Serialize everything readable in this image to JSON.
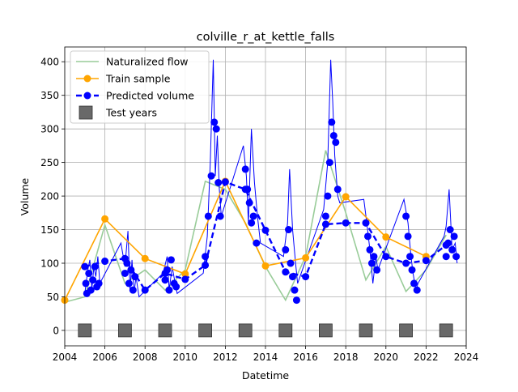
{
  "chart_data": {
    "type": "line",
    "title": "colville_r_at_kettle_falls",
    "xlabel": "Datetime",
    "ylabel": "Volume",
    "xlim": [
      2004,
      2024
    ],
    "ylim": [
      -23,
      422
    ],
    "x_ticks": [
      2004,
      2006,
      2008,
      2010,
      2012,
      2014,
      2016,
      2018,
      2020,
      2022,
      2024
    ],
    "y_ticks": [
      0,
      50,
      100,
      150,
      200,
      250,
      300,
      350,
      400
    ],
    "grid": true,
    "legend_position": "top-left",
    "series": [
      {
        "name": "Naturalized flow",
        "kind": "line",
        "color": "#99cc99",
        "points": [
          [
            2004,
            42
          ],
          [
            2005,
            50
          ],
          [
            2006,
            157
          ],
          [
            2007,
            70
          ],
          [
            2008,
            90
          ],
          [
            2009,
            60
          ],
          [
            2010,
            90
          ],
          [
            2011,
            222
          ],
          [
            2012,
            210
          ],
          [
            2013,
            160
          ],
          [
            2014,
            95
          ],
          [
            2015,
            45
          ],
          [
            2016,
            110
          ],
          [
            2017,
            268
          ],
          [
            2018,
            175
          ],
          [
            2019,
            75
          ],
          [
            2020,
            125
          ],
          [
            2021,
            58
          ],
          [
            2022,
            90
          ],
          [
            2023,
            142
          ]
        ]
      },
      {
        "name": "Train sample",
        "kind": "line-marker",
        "color": "#ffa500",
        "points": [
          [
            2004,
            45
          ],
          [
            2006,
            166
          ],
          [
            2008,
            107
          ],
          [
            2010,
            84
          ],
          [
            2012,
            222
          ],
          [
            2014,
            96
          ],
          [
            2016,
            108
          ],
          [
            2018,
            199
          ],
          [
            2020,
            139
          ],
          [
            2022,
            110
          ]
        ]
      },
      {
        "name": "Predicted volume",
        "kind": "dashed-marker",
        "color": "#0000ff",
        "points": [
          [
            2005,
            95
          ],
          [
            2006,
            103
          ],
          [
            2007,
            107
          ],
          [
            2008,
            60
          ],
          [
            2009,
            85
          ],
          [
            2010,
            76
          ],
          [
            2011,
            97
          ],
          [
            2012,
            221
          ],
          [
            2013,
            210
          ],
          [
            2014,
            149
          ],
          [
            2015,
            87
          ],
          [
            2016,
            80
          ],
          [
            2017,
            158
          ],
          [
            2018,
            160
          ],
          [
            2019,
            160
          ],
          [
            2020,
            110
          ],
          [
            2021,
            100
          ],
          [
            2022,
            104
          ],
          [
            2023,
            127
          ]
        ]
      },
      {
        "name": "Predicted volume detail",
        "kind": "thin-line",
        "color": "#0000ff",
        "points": [
          [
            2005.0,
            55
          ],
          [
            2005.15,
            90
          ],
          [
            2005.25,
            105
          ],
          [
            2005.35,
            62
          ],
          [
            2005.45,
            95
          ],
          [
            2005.55,
            80
          ],
          [
            2005.65,
            110
          ],
          [
            2005.75,
            70
          ],
          [
            2006.8,
            130
          ],
          [
            2007.0,
            95
          ],
          [
            2007.15,
            148
          ],
          [
            2007.25,
            60
          ],
          [
            2007.35,
            105
          ],
          [
            2007.45,
            55
          ],
          [
            2007.55,
            80
          ],
          [
            2007.7,
            50
          ],
          [
            2008.9,
            85
          ],
          [
            2009.1,
            110
          ],
          [
            2009.2,
            60
          ],
          [
            2009.35,
            95
          ],
          [
            2009.5,
            70
          ],
          [
            2009.6,
            55
          ],
          [
            2010.9,
            85
          ],
          [
            2011.1,
            140
          ],
          [
            2011.25,
            250
          ],
          [
            2011.4,
            403
          ],
          [
            2011.5,
            230
          ],
          [
            2011.6,
            290
          ],
          [
            2011.7,
            210
          ],
          [
            2011.8,
            170
          ],
          [
            2012.9,
            275
          ],
          [
            2013.05,
            230
          ],
          [
            2013.15,
            160
          ],
          [
            2013.3,
            300
          ],
          [
            2013.45,
            220
          ],
          [
            2013.6,
            170
          ],
          [
            2013.75,
            130
          ],
          [
            2014.9,
            110
          ],
          [
            2015.1,
            160
          ],
          [
            2015.2,
            240
          ],
          [
            2015.35,
            150
          ],
          [
            2015.5,
            100
          ],
          [
            2015.6,
            70
          ],
          [
            2016.9,
            180
          ],
          [
            2017.1,
            250
          ],
          [
            2017.25,
            403
          ],
          [
            2017.35,
            340
          ],
          [
            2017.45,
            260
          ],
          [
            2017.6,
            200
          ],
          [
            2017.7,
            190
          ],
          [
            2018.9,
            195
          ],
          [
            2019.05,
            160
          ],
          [
            2019.2,
            120
          ],
          [
            2019.35,
            70
          ],
          [
            2019.5,
            110
          ],
          [
            2019.6,
            90
          ],
          [
            2020.9,
            195
          ],
          [
            2021.1,
            160
          ],
          [
            2021.25,
            110
          ],
          [
            2021.35,
            85
          ],
          [
            2021.5,
            60
          ],
          [
            2021.6,
            70
          ],
          [
            2022.9,
            140
          ],
          [
            2023.0,
            155
          ],
          [
            2023.15,
            210
          ],
          [
            2023.3,
            120
          ],
          [
            2023.45,
            130
          ],
          [
            2023.55,
            100
          ]
        ]
      },
      {
        "name": "Predicted volume markers",
        "kind": "markers",
        "color": "#0000ff",
        "points": [
          [
            2005.05,
            70
          ],
          [
            2005.1,
            55
          ],
          [
            2005.2,
            85
          ],
          [
            2005.3,
            60
          ],
          [
            2005.4,
            75
          ],
          [
            2005.5,
            95
          ],
          [
            2005.6,
            65
          ],
          [
            2005.7,
            70
          ],
          [
            2007.0,
            85
          ],
          [
            2007.1,
            100
          ],
          [
            2007.2,
            70
          ],
          [
            2007.3,
            90
          ],
          [
            2007.4,
            60
          ],
          [
            2007.5,
            80
          ],
          [
            2009.0,
            75
          ],
          [
            2009.1,
            90
          ],
          [
            2009.2,
            60
          ],
          [
            2009.3,
            105
          ],
          [
            2009.45,
            70
          ],
          [
            2009.55,
            65
          ],
          [
            2011.0,
            110
          ],
          [
            2011.15,
            170
          ],
          [
            2011.3,
            230
          ],
          [
            2011.45,
            310
          ],
          [
            2011.55,
            300
          ],
          [
            2011.65,
            220
          ],
          [
            2011.75,
            170
          ],
          [
            2013.0,
            240
          ],
          [
            2013.1,
            210
          ],
          [
            2013.2,
            190
          ],
          [
            2013.3,
            160
          ],
          [
            2013.4,
            170
          ],
          [
            2013.55,
            130
          ],
          [
            2015.0,
            120
          ],
          [
            2015.15,
            150
          ],
          [
            2015.25,
            100
          ],
          [
            2015.35,
            80
          ],
          [
            2015.45,
            60
          ],
          [
            2015.55,
            45
          ],
          [
            2017.0,
            170
          ],
          [
            2017.1,
            200
          ],
          [
            2017.2,
            250
          ],
          [
            2017.3,
            310
          ],
          [
            2017.4,
            290
          ],
          [
            2017.5,
            280
          ],
          [
            2017.6,
            210
          ],
          [
            2019.0,
            160
          ],
          [
            2019.1,
            140
          ],
          [
            2019.2,
            120
          ],
          [
            2019.3,
            100
          ],
          [
            2019.4,
            110
          ],
          [
            2019.55,
            90
          ],
          [
            2021.0,
            170
          ],
          [
            2021.1,
            140
          ],
          [
            2021.2,
            110
          ],
          [
            2021.3,
            90
          ],
          [
            2021.4,
            70
          ],
          [
            2021.55,
            60
          ],
          [
            2023.0,
            110
          ],
          [
            2023.1,
            130
          ],
          [
            2023.2,
            150
          ],
          [
            2023.3,
            120
          ],
          [
            2023.4,
            140
          ],
          [
            2023.5,
            110
          ]
        ]
      },
      {
        "name": "Test years",
        "kind": "squares",
        "color": "#696969",
        "points": [
          [
            2005,
            0
          ],
          [
            2007,
            0
          ],
          [
            2009,
            0
          ],
          [
            2011,
            0
          ],
          [
            2013,
            0
          ],
          [
            2015,
            0
          ],
          [
            2017,
            0
          ],
          [
            2019,
            0
          ],
          [
            2021,
            0
          ],
          [
            2023,
            0
          ]
        ]
      }
    ]
  }
}
